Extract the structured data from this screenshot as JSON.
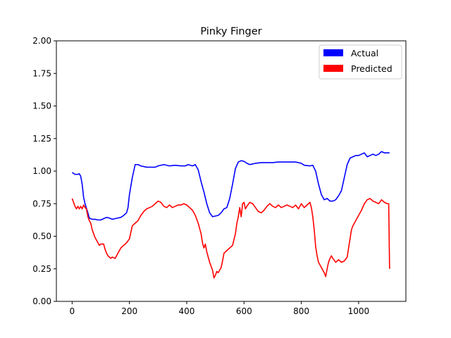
{
  "chart_data": {
    "type": "line",
    "title": "Pinky Finger",
    "xlabel": "",
    "ylabel": "",
    "xlim": [
      -55,
      1165
    ],
    "ylim": [
      0,
      2
    ],
    "x_ticks": [
      0,
      200,
      400,
      600,
      800,
      1000
    ],
    "x_tick_labels": [
      "0",
      "200",
      "400",
      "600",
      "800",
      "1000"
    ],
    "y_ticks": [
      0,
      0.25,
      0.5,
      0.75,
      1.0,
      1.25,
      1.5,
      1.75,
      2.0
    ],
    "y_tick_labels": [
      "0.00",
      "0.25",
      "0.50",
      "0.75",
      "1.00",
      "1.25",
      "1.50",
      "1.75",
      "2.00"
    ],
    "grid": false,
    "legend_position": "top-right",
    "series": [
      {
        "name": "Actual",
        "color": "#0000ff",
        "points": [
          [
            0,
            0.99
          ],
          [
            10,
            0.975
          ],
          [
            20,
            0.975
          ],
          [
            25,
            0.98
          ],
          [
            30,
            0.96
          ],
          [
            35,
            0.9
          ],
          [
            40,
            0.8
          ],
          [
            45,
            0.75
          ],
          [
            55,
            0.68
          ],
          [
            60,
            0.64
          ],
          [
            70,
            0.63
          ],
          [
            80,
            0.63
          ],
          [
            90,
            0.625
          ],
          [
            100,
            0.625
          ],
          [
            110,
            0.635
          ],
          [
            120,
            0.645
          ],
          [
            130,
            0.64
          ],
          [
            140,
            0.63
          ],
          [
            150,
            0.635
          ],
          [
            160,
            0.64
          ],
          [
            170,
            0.645
          ],
          [
            180,
            0.66
          ],
          [
            190,
            0.68
          ],
          [
            195,
            0.72
          ],
          [
            200,
            0.82
          ],
          [
            210,
            0.95
          ],
          [
            220,
            1.05
          ],
          [
            230,
            1.05
          ],
          [
            240,
            1.04
          ],
          [
            260,
            1.03
          ],
          [
            290,
            1.03
          ],
          [
            300,
            1.04
          ],
          [
            320,
            1.05
          ],
          [
            340,
            1.04
          ],
          [
            360,
            1.045
          ],
          [
            380,
            1.04
          ],
          [
            395,
            1.04
          ],
          [
            405,
            1.05
          ],
          [
            420,
            1.04
          ],
          [
            430,
            1.05
          ],
          [
            440,
            1.01
          ],
          [
            450,
            0.92
          ],
          [
            460,
            0.84
          ],
          [
            470,
            0.75
          ],
          [
            480,
            0.68
          ],
          [
            490,
            0.65
          ],
          [
            510,
            0.66
          ],
          [
            520,
            0.68
          ],
          [
            530,
            0.71
          ],
          [
            540,
            0.72
          ],
          [
            550,
            0.79
          ],
          [
            560,
            0.9
          ],
          [
            570,
            1.02
          ],
          [
            580,
            1.07
          ],
          [
            590,
            1.08
          ],
          [
            600,
            1.075
          ],
          [
            610,
            1.06
          ],
          [
            620,
            1.05
          ],
          [
            630,
            1.055
          ],
          [
            640,
            1.06
          ],
          [
            660,
            1.065
          ],
          [
            700,
            1.065
          ],
          [
            720,
            1.07
          ],
          [
            780,
            1.07
          ],
          [
            800,
            1.06
          ],
          [
            810,
            1.045
          ],
          [
            830,
            1.04
          ],
          [
            840,
            1.045
          ],
          [
            850,
            1.0
          ],
          [
            860,
            0.9
          ],
          [
            870,
            0.82
          ],
          [
            880,
            0.78
          ],
          [
            890,
            0.79
          ],
          [
            900,
            0.77
          ],
          [
            910,
            0.77
          ],
          [
            920,
            0.78
          ],
          [
            930,
            0.81
          ],
          [
            940,
            0.85
          ],
          [
            950,
            0.95
          ],
          [
            960,
            1.05
          ],
          [
            970,
            1.1
          ],
          [
            980,
            1.11
          ],
          [
            990,
            1.12
          ],
          [
            1000,
            1.12
          ],
          [
            1010,
            1.13
          ],
          [
            1020,
            1.14
          ],
          [
            1030,
            1.11
          ],
          [
            1040,
            1.12
          ],
          [
            1050,
            1.13
          ],
          [
            1060,
            1.12
          ],
          [
            1070,
            1.13
          ],
          [
            1080,
            1.15
          ],
          [
            1090,
            1.14
          ],
          [
            1100,
            1.14
          ],
          [
            1108,
            1.14
          ]
        ]
      },
      {
        "name": "Predicted",
        "color": "#ff0000",
        "points": [
          [
            0,
            0.79
          ],
          [
            5,
            0.76
          ],
          [
            10,
            0.73
          ],
          [
            15,
            0.71
          ],
          [
            20,
            0.73
          ],
          [
            25,
            0.71
          ],
          [
            30,
            0.73
          ],
          [
            35,
            0.71
          ],
          [
            40,
            0.74
          ],
          [
            45,
            0.72
          ],
          [
            50,
            0.71
          ],
          [
            55,
            0.65
          ],
          [
            60,
            0.62
          ],
          [
            65,
            0.6
          ],
          [
            70,
            0.55
          ],
          [
            75,
            0.52
          ],
          [
            80,
            0.49
          ],
          [
            85,
            0.47
          ],
          [
            90,
            0.45
          ],
          [
            95,
            0.43
          ],
          [
            100,
            0.44
          ],
          [
            110,
            0.44
          ],
          [
            115,
            0.4
          ],
          [
            120,
            0.37
          ],
          [
            125,
            0.35
          ],
          [
            130,
            0.34
          ],
          [
            135,
            0.33
          ],
          [
            140,
            0.34
          ],
          [
            150,
            0.33
          ],
          [
            155,
            0.35
          ],
          [
            160,
            0.37
          ],
          [
            170,
            0.41
          ],
          [
            180,
            0.43
          ],
          [
            190,
            0.45
          ],
          [
            200,
            0.48
          ],
          [
            205,
            0.53
          ],
          [
            210,
            0.58
          ],
          [
            220,
            0.6
          ],
          [
            230,
            0.62
          ],
          [
            240,
            0.66
          ],
          [
            250,
            0.69
          ],
          [
            260,
            0.71
          ],
          [
            270,
            0.72
          ],
          [
            280,
            0.73
          ],
          [
            290,
            0.75
          ],
          [
            300,
            0.77
          ],
          [
            310,
            0.76
          ],
          [
            320,
            0.73
          ],
          [
            330,
            0.72
          ],
          [
            340,
            0.74
          ],
          [
            350,
            0.72
          ],
          [
            360,
            0.73
          ],
          [
            370,
            0.74
          ],
          [
            380,
            0.74
          ],
          [
            390,
            0.75
          ],
          [
            400,
            0.74
          ],
          [
            410,
            0.72
          ],
          [
            420,
            0.7
          ],
          [
            430,
            0.66
          ],
          [
            440,
            0.6
          ],
          [
            450,
            0.52
          ],
          [
            455,
            0.45
          ],
          [
            460,
            0.41
          ],
          [
            465,
            0.44
          ],
          [
            470,
            0.38
          ],
          [
            480,
            0.3
          ],
          [
            490,
            0.24
          ],
          [
            495,
            0.18
          ],
          [
            500,
            0.2
          ],
          [
            505,
            0.23
          ],
          [
            510,
            0.22
          ],
          [
            520,
            0.26
          ],
          [
            525,
            0.31
          ],
          [
            530,
            0.37
          ],
          [
            540,
            0.39
          ],
          [
            550,
            0.41
          ],
          [
            560,
            0.43
          ],
          [
            570,
            0.52
          ],
          [
            575,
            0.6
          ],
          [
            580,
            0.65
          ],
          [
            585,
            0.72
          ],
          [
            590,
            0.65
          ],
          [
            595,
            0.75
          ],
          [
            600,
            0.76
          ],
          [
            605,
            0.71
          ],
          [
            610,
            0.73
          ],
          [
            620,
            0.76
          ],
          [
            630,
            0.75
          ],
          [
            640,
            0.72
          ],
          [
            650,
            0.69
          ],
          [
            660,
            0.68
          ],
          [
            670,
            0.7
          ],
          [
            680,
            0.73
          ],
          [
            690,
            0.75
          ],
          [
            700,
            0.73
          ],
          [
            710,
            0.72
          ],
          [
            720,
            0.74
          ],
          [
            730,
            0.72
          ],
          [
            740,
            0.73
          ],
          [
            750,
            0.74
          ],
          [
            760,
            0.73
          ],
          [
            770,
            0.72
          ],
          [
            780,
            0.74
          ],
          [
            790,
            0.71
          ],
          [
            800,
            0.75
          ],
          [
            810,
            0.72
          ],
          [
            820,
            0.74
          ],
          [
            830,
            0.76
          ],
          [
            835,
            0.72
          ],
          [
            840,
            0.65
          ],
          [
            845,
            0.55
          ],
          [
            850,
            0.42
          ],
          [
            855,
            0.35
          ],
          [
            860,
            0.3
          ],
          [
            865,
            0.28
          ],
          [
            870,
            0.26
          ],
          [
            880,
            0.22
          ],
          [
            885,
            0.19
          ],
          [
            890,
            0.25
          ],
          [
            895,
            0.3
          ],
          [
            900,
            0.33
          ],
          [
            905,
            0.35
          ],
          [
            910,
            0.33
          ],
          [
            920,
            0.3
          ],
          [
            930,
            0.32
          ],
          [
            940,
            0.3
          ],
          [
            950,
            0.31
          ],
          [
            960,
            0.34
          ],
          [
            965,
            0.41
          ],
          [
            970,
            0.48
          ],
          [
            975,
            0.55
          ],
          [
            980,
            0.58
          ],
          [
            990,
            0.62
          ],
          [
            1000,
            0.66
          ],
          [
            1010,
            0.7
          ],
          [
            1020,
            0.75
          ],
          [
            1030,
            0.78
          ],
          [
            1040,
            0.79
          ],
          [
            1050,
            0.77
          ],
          [
            1060,
            0.76
          ],
          [
            1070,
            0.75
          ],
          [
            1080,
            0.78
          ],
          [
            1090,
            0.76
          ],
          [
            1100,
            0.75
          ],
          [
            1105,
            0.75
          ],
          [
            1108,
            0.25
          ]
        ]
      }
    ]
  }
}
